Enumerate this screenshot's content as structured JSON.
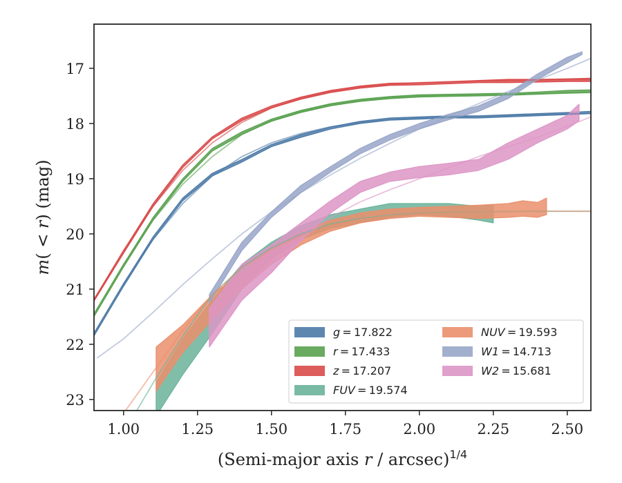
{
  "chart_data": {
    "type": "line",
    "xlabel": "(Semi-major axis r / arcsec)^{1/4}",
    "xlabel_parts": {
      "prefix": "(Semi-major axis ",
      "var": "r",
      "suffix": " / arcsec)",
      "exp": "1/4"
    },
    "ylabel": "m(< r) (mag)",
    "ylabel_parts": {
      "m": "m",
      "open": "( < ",
      "var": "r",
      "close": ") (mag)"
    },
    "xlim": [
      0.9,
      2.58
    ],
    "ylim": [
      23.2,
      16.2
    ],
    "y_inverted": true,
    "grid": false,
    "xticks": [
      "1.00",
      "1.25",
      "1.50",
      "1.75",
      "2.00",
      "2.25",
      "2.50"
    ],
    "xtick_values": [
      1.0,
      1.25,
      1.5,
      1.75,
      2.0,
      2.25,
      2.5
    ],
    "yticks": [
      "17",
      "18",
      "19",
      "20",
      "21",
      "22",
      "23"
    ],
    "ytick_values": [
      17,
      18,
      19,
      20,
      21,
      22,
      23
    ],
    "legend_position": "lower-right",
    "series": [
      {
        "name": "g = 17.822",
        "var": "g",
        "value": "17.822",
        "color": "#4c7aa7",
        "band": [
          [
            0.9,
            21.85,
            21.8
          ],
          [
            1.0,
            20.95,
            20.9
          ],
          [
            1.1,
            20.1,
            20.05
          ],
          [
            1.2,
            19.4,
            19.35
          ],
          [
            1.3,
            18.95,
            18.9
          ],
          [
            1.4,
            18.7,
            18.65
          ],
          [
            1.5,
            18.42,
            18.38
          ],
          [
            1.6,
            18.25,
            18.2
          ],
          [
            1.7,
            18.1,
            18.06
          ],
          [
            1.8,
            18.0,
            17.96
          ],
          [
            1.9,
            17.94,
            17.9
          ],
          [
            2.0,
            17.92,
            17.88
          ],
          [
            2.1,
            17.9,
            17.86
          ],
          [
            2.2,
            17.9,
            17.86
          ],
          [
            2.3,
            17.88,
            17.84
          ],
          [
            2.4,
            17.86,
            17.82
          ],
          [
            2.5,
            17.84,
            17.8
          ],
          [
            2.58,
            17.82,
            17.78
          ]
        ],
        "model": [
          [
            0.9,
            21.8
          ],
          [
            1.0,
            20.9
          ],
          [
            1.1,
            20.1
          ],
          [
            1.2,
            19.45
          ],
          [
            1.3,
            18.95
          ],
          [
            1.4,
            18.6
          ],
          [
            1.5,
            18.35
          ],
          [
            1.6,
            18.18
          ],
          [
            1.7,
            18.06
          ],
          [
            1.8,
            17.98
          ],
          [
            1.9,
            17.93
          ],
          [
            2.0,
            17.9
          ],
          [
            2.2,
            17.87
          ],
          [
            2.4,
            17.84
          ],
          [
            2.58,
            17.82
          ]
        ]
      },
      {
        "name": "r = 17.433",
        "var": "r",
        "value": "17.433",
        "color": "#59a14f",
        "band": [
          [
            0.9,
            21.5,
            21.45
          ],
          [
            1.0,
            20.6,
            20.55
          ],
          [
            1.1,
            19.75,
            19.7
          ],
          [
            1.2,
            19.05,
            19.0
          ],
          [
            1.3,
            18.5,
            18.45
          ],
          [
            1.4,
            18.2,
            18.15
          ],
          [
            1.5,
            17.96,
            17.92
          ],
          [
            1.6,
            17.8,
            17.76
          ],
          [
            1.7,
            17.68,
            17.64
          ],
          [
            1.8,
            17.6,
            17.56
          ],
          [
            1.9,
            17.55,
            17.51
          ],
          [
            2.0,
            17.52,
            17.48
          ],
          [
            2.1,
            17.51,
            17.47
          ],
          [
            2.2,
            17.5,
            17.46
          ],
          [
            2.3,
            17.49,
            17.45
          ],
          [
            2.4,
            17.47,
            17.43
          ],
          [
            2.5,
            17.45,
            17.4
          ],
          [
            2.58,
            17.44,
            17.39
          ]
        ],
        "model": [
          [
            0.9,
            21.45
          ],
          [
            1.0,
            20.55
          ],
          [
            1.1,
            19.75
          ],
          [
            1.2,
            19.1
          ],
          [
            1.3,
            18.6
          ],
          [
            1.4,
            18.2
          ],
          [
            1.5,
            17.95
          ],
          [
            1.6,
            17.78
          ],
          [
            1.7,
            17.66
          ],
          [
            1.8,
            17.58
          ],
          [
            1.9,
            17.53
          ],
          [
            2.0,
            17.5
          ],
          [
            2.2,
            17.48
          ],
          [
            2.4,
            17.46
          ],
          [
            2.58,
            17.44
          ]
        ]
      },
      {
        "name": "z = 17.207",
        "var": "z",
        "value": "17.207",
        "color": "#d94a4a",
        "band": [
          [
            0.9,
            21.22,
            21.18
          ],
          [
            1.0,
            20.35,
            20.3
          ],
          [
            1.1,
            19.5,
            19.45
          ],
          [
            1.2,
            18.8,
            18.75
          ],
          [
            1.3,
            18.28,
            18.24
          ],
          [
            1.4,
            17.95,
            17.9
          ],
          [
            1.5,
            17.72,
            17.68
          ],
          [
            1.6,
            17.56,
            17.52
          ],
          [
            1.7,
            17.44,
            17.4
          ],
          [
            1.8,
            17.36,
            17.32
          ],
          [
            1.9,
            17.31,
            17.27
          ],
          [
            2.0,
            17.3,
            17.26
          ],
          [
            2.1,
            17.28,
            17.24
          ],
          [
            2.2,
            17.26,
            17.22
          ],
          [
            2.3,
            17.26,
            17.2
          ],
          [
            2.4,
            17.25,
            17.2
          ],
          [
            2.5,
            17.24,
            17.19
          ],
          [
            2.58,
            17.24,
            17.18
          ]
        ],
        "model": [
          [
            0.9,
            21.2
          ],
          [
            1.0,
            20.3
          ],
          [
            1.1,
            19.5
          ],
          [
            1.2,
            18.85
          ],
          [
            1.3,
            18.35
          ],
          [
            1.4,
            17.98
          ],
          [
            1.5,
            17.72
          ],
          [
            1.6,
            17.54
          ],
          [
            1.7,
            17.42
          ],
          [
            1.8,
            17.34
          ],
          [
            1.9,
            17.29
          ],
          [
            2.0,
            17.26
          ],
          [
            2.2,
            17.23
          ],
          [
            2.4,
            17.21
          ],
          [
            2.58,
            17.2
          ]
        ]
      },
      {
        "name": "FUV = 19.574",
        "var": "FUV",
        "value": "19.574",
        "color": "#6ab39b",
        "band": [
          [
            1.11,
            23.3,
            22.7
          ],
          [
            1.2,
            22.55,
            21.9
          ],
          [
            1.3,
            21.8,
            21.2
          ],
          [
            1.4,
            21.0,
            20.55
          ],
          [
            1.5,
            20.45,
            20.15
          ],
          [
            1.6,
            20.1,
            19.85
          ],
          [
            1.7,
            19.9,
            19.65
          ],
          [
            1.8,
            19.8,
            19.55
          ],
          [
            1.9,
            19.7,
            19.45
          ],
          [
            2.0,
            19.65,
            19.45
          ],
          [
            2.1,
            19.68,
            19.45
          ],
          [
            2.2,
            19.75,
            19.5
          ],
          [
            2.25,
            19.8,
            19.48
          ]
        ],
        "model": [
          [
            0.9,
            24.5
          ],
          [
            1.0,
            23.6
          ],
          [
            1.05,
            23.15
          ],
          [
            1.1,
            22.7
          ],
          [
            1.2,
            21.85
          ],
          [
            1.3,
            21.1
          ],
          [
            1.4,
            20.6
          ],
          [
            1.5,
            20.25
          ],
          [
            1.6,
            20.0
          ],
          [
            1.7,
            19.82
          ],
          [
            1.8,
            19.72
          ],
          [
            1.9,
            19.66
          ],
          [
            2.0,
            19.62
          ],
          [
            2.2,
            19.6
          ],
          [
            2.4,
            19.59
          ],
          [
            2.58,
            19.59
          ]
        ]
      },
      {
        "name": "NUV = 19.593",
        "var": "NUV",
        "value": "19.593",
        "color": "#ea8f6c",
        "band": [
          [
            1.11,
            22.85,
            22.05
          ],
          [
            1.2,
            22.15,
            21.65
          ],
          [
            1.3,
            21.55,
            21.1
          ],
          [
            1.4,
            21.0,
            20.7
          ],
          [
            1.5,
            20.55,
            20.25
          ],
          [
            1.6,
            20.2,
            19.95
          ],
          [
            1.7,
            19.95,
            19.75
          ],
          [
            1.8,
            19.8,
            19.62
          ],
          [
            1.9,
            19.72,
            19.55
          ],
          [
            2.0,
            19.68,
            19.52
          ],
          [
            2.1,
            19.7,
            19.5
          ],
          [
            2.2,
            19.72,
            19.48
          ],
          [
            2.3,
            19.7,
            19.45
          ],
          [
            2.35,
            19.68,
            19.4
          ],
          [
            2.4,
            19.7,
            19.43
          ],
          [
            2.43,
            19.65,
            19.35
          ]
        ],
        "model": [
          [
            0.9,
            24.0
          ],
          [
            1.0,
            23.25
          ],
          [
            1.1,
            22.5
          ],
          [
            1.2,
            21.75
          ],
          [
            1.3,
            21.1
          ],
          [
            1.4,
            20.62
          ],
          [
            1.5,
            20.28
          ],
          [
            1.6,
            20.03
          ],
          [
            1.7,
            19.85
          ],
          [
            1.8,
            19.74
          ],
          [
            1.9,
            19.67
          ],
          [
            2.0,
            19.63
          ],
          [
            2.2,
            19.6
          ],
          [
            2.4,
            19.59
          ],
          [
            2.58,
            19.59
          ]
        ]
      },
      {
        "name": "W1 = 14.713",
        "var": "W1",
        "value": "14.713",
        "color": "#98a6c8",
        "band": [
          [
            1.29,
            21.25,
            21.1
          ],
          [
            1.4,
            20.3,
            20.15
          ],
          [
            1.5,
            19.7,
            19.6
          ],
          [
            1.6,
            19.25,
            19.12
          ],
          [
            1.7,
            18.88,
            18.78
          ],
          [
            1.8,
            18.55,
            18.45
          ],
          [
            1.9,
            18.3,
            18.2
          ],
          [
            2.0,
            18.1,
            18.0
          ],
          [
            2.1,
            17.93,
            17.83
          ],
          [
            2.2,
            17.78,
            17.68
          ],
          [
            2.3,
            17.55,
            17.45
          ],
          [
            2.4,
            17.2,
            17.1
          ],
          [
            2.5,
            16.9,
            16.8
          ],
          [
            2.55,
            16.75,
            16.7
          ]
        ],
        "model": [
          [
            0.91,
            22.25
          ],
          [
            1.0,
            21.9
          ],
          [
            1.1,
            21.42
          ],
          [
            1.2,
            20.92
          ],
          [
            1.3,
            20.45
          ],
          [
            1.4,
            20.0
          ],
          [
            1.5,
            19.6
          ],
          [
            1.6,
            19.25
          ],
          [
            1.7,
            18.93
          ],
          [
            1.8,
            18.63
          ],
          [
            1.9,
            18.36
          ],
          [
            2.0,
            18.1
          ],
          [
            2.1,
            17.87
          ],
          [
            2.2,
            17.64
          ],
          [
            2.3,
            17.42
          ],
          [
            2.4,
            17.21
          ],
          [
            2.5,
            17.0
          ],
          [
            2.58,
            16.82
          ]
        ]
      },
      {
        "name": "W2 = 15.681",
        "var": "W2",
        "value": "15.681",
        "color": "#dd96c6",
        "band": [
          [
            1.29,
            22.05,
            21.35
          ],
          [
            1.4,
            21.2,
            20.55
          ],
          [
            1.5,
            20.7,
            20.2
          ],
          [
            1.6,
            20.12,
            19.8
          ],
          [
            1.7,
            19.62,
            19.4
          ],
          [
            1.8,
            19.25,
            19.05
          ],
          [
            1.9,
            19.05,
            18.88
          ],
          [
            2.0,
            18.98,
            18.78
          ],
          [
            2.1,
            18.93,
            18.72
          ],
          [
            2.2,
            18.85,
            18.65
          ],
          [
            2.3,
            18.65,
            18.35
          ],
          [
            2.4,
            18.35,
            18.1
          ],
          [
            2.5,
            18.1,
            17.85
          ],
          [
            2.54,
            17.95,
            17.65
          ]
        ],
        "model": [
          [
            1.5,
            20.7
          ],
          [
            1.6,
            20.1
          ],
          [
            1.7,
            19.7
          ],
          [
            1.8,
            19.42
          ],
          [
            1.9,
            19.2
          ],
          [
            2.0,
            19.0
          ],
          [
            2.1,
            18.8
          ],
          [
            2.2,
            18.6
          ],
          [
            2.3,
            18.42
          ],
          [
            2.4,
            18.25
          ],
          [
            2.5,
            18.05
          ],
          [
            2.58,
            17.88
          ]
        ]
      }
    ]
  }
}
